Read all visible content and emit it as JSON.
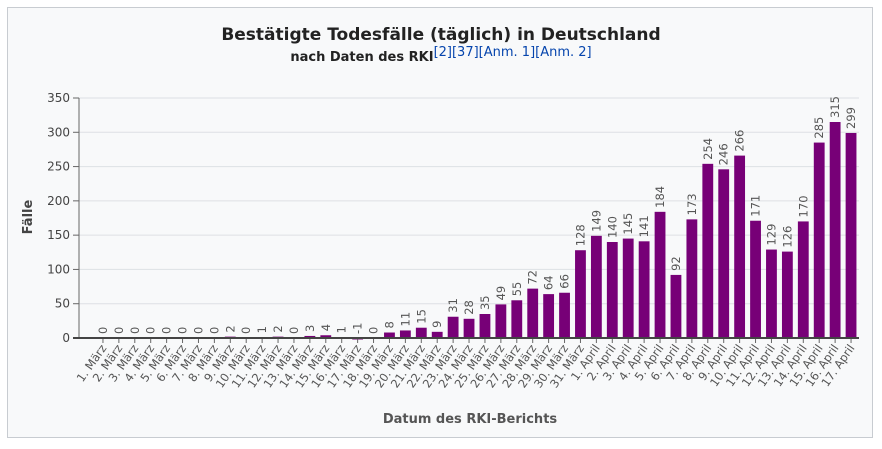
{
  "chart_data": {
    "type": "bar",
    "title": "Bestätigte Todesfälle (täglich) in Deutschland",
    "subtitle": "nach Daten des RKI",
    "references": [
      "[2]",
      "[37]",
      "[Anm. 1]",
      "[Anm. 2]"
    ],
    "xlabel": "Datum des RKI-Berichts",
    "ylabel": "Fälle",
    "ylim": [
      0,
      350
    ],
    "yticks": [
      0,
      50,
      100,
      150,
      200,
      250,
      300,
      350
    ],
    "grid": true,
    "bar_color": "#770077",
    "categories": [
      "1. März",
      "2. März",
      "3. März",
      "4. März",
      "5. März",
      "6. März",
      "7. März",
      "8. März",
      "9. März",
      "10. März",
      "11. März",
      "12. März",
      "13. März",
      "14. März",
      "15. März",
      "16. März",
      "17. März",
      "18. März",
      "19. März",
      "20. März",
      "21. März",
      "22. März",
      "23. März",
      "24. März",
      "25. März",
      "26. März",
      "27. März",
      "28. März",
      "29. März",
      "30. März",
      "31. März",
      "1. April",
      "2. April",
      "3. April",
      "4. April",
      "5. April",
      "6. April",
      "7. April",
      "8. April",
      "9. April",
      "10. April",
      "11. April",
      "12. April",
      "13. April",
      "14. April",
      "15. April",
      "16. April",
      "17. April"
    ],
    "values": [
      0,
      0,
      0,
      0,
      0,
      0,
      0,
      0,
      2,
      0,
      1,
      2,
      0,
      3,
      4,
      1,
      -1,
      0,
      8,
      11,
      15,
      9,
      31,
      28,
      35,
      49,
      55,
      72,
      64,
      66,
      128,
      149,
      140,
      145,
      141,
      184,
      92,
      173,
      254,
      246,
      266,
      171,
      129,
      126,
      170,
      285,
      315,
      299
    ]
  }
}
